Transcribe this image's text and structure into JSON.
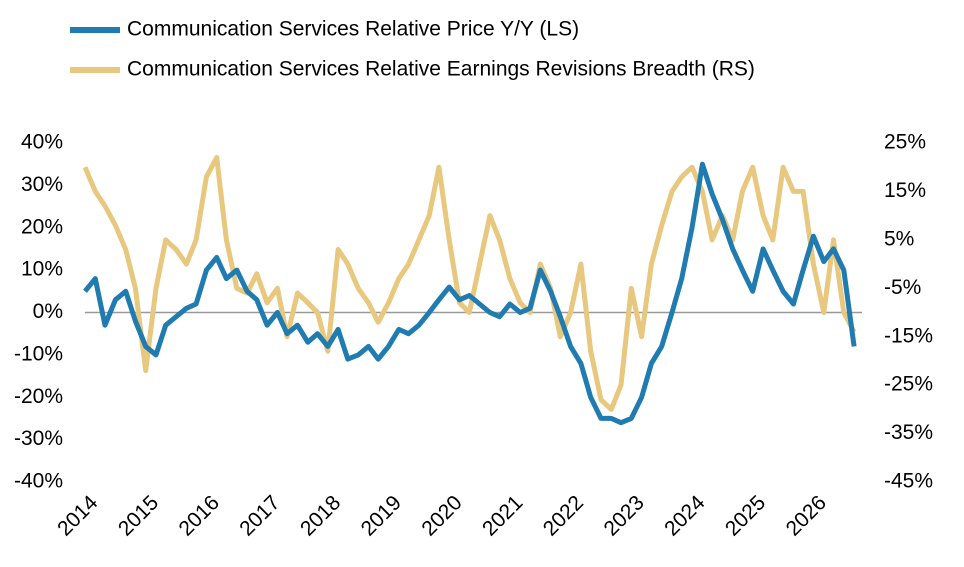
{
  "chart_data": {
    "type": "line",
    "x": [
      2014.0,
      2014.17,
      2014.33,
      2014.5,
      2014.67,
      2014.83,
      2015.0,
      2015.17,
      2015.33,
      2015.5,
      2015.67,
      2015.83,
      2016.0,
      2016.17,
      2016.33,
      2016.5,
      2016.67,
      2016.83,
      2017.0,
      2017.17,
      2017.33,
      2017.5,
      2017.67,
      2017.83,
      2018.0,
      2018.17,
      2018.33,
      2018.5,
      2018.67,
      2018.83,
      2019.0,
      2019.17,
      2019.33,
      2019.5,
      2019.67,
      2019.83,
      2020.0,
      2020.17,
      2020.33,
      2020.5,
      2020.67,
      2020.83,
      2021.0,
      2021.17,
      2021.33,
      2021.5,
      2021.67,
      2021.83,
      2022.0,
      2022.17,
      2022.33,
      2022.5,
      2022.67,
      2022.83,
      2023.0,
      2023.17,
      2023.33,
      2023.5,
      2023.67,
      2023.83,
      2024.0,
      2024.17,
      2024.33,
      2024.5,
      2024.67,
      2024.83,
      2025.0,
      2025.17,
      2025.33,
      2025.5,
      2025.67,
      2025.83,
      2026.0,
      2026.17,
      2026.33,
      2026.5,
      2026.67
    ],
    "series": [
      {
        "name": "Communication Services Relative Price Y/Y (LS)",
        "color": "#1f7bb0",
        "values": [
          5,
          8,
          -3,
          3,
          5,
          -2,
          -8,
          -10,
          -3,
          -1,
          1,
          2,
          10,
          13,
          8,
          10,
          5,
          3,
          -3,
          0,
          -5,
          -3,
          -7,
          -5,
          -8,
          -4,
          -11,
          -10,
          -8,
          -11,
          -8,
          -4,
          -5,
          -3,
          0,
          3,
          6,
          3,
          4,
          2,
          0,
          -1,
          2,
          0,
          1,
          10,
          5,
          -1,
          -8,
          -12,
          -20,
          -25,
          -25,
          -26,
          -25,
          -20,
          -12,
          -8,
          0,
          8,
          20,
          35,
          28,
          22,
          15,
          10,
          5,
          15,
          10,
          5,
          2,
          10,
          18,
          12,
          15,
          10,
          -8
        ]
      },
      {
        "name": "Communication Services Relative Earnings Revisions Breadth (RS)",
        "color": "#e8c77e",
        "axis": "y2",
        "values": [
          20,
          15,
          12,
          8,
          3,
          -5,
          -22,
          -5,
          5,
          3,
          0,
          5,
          18,
          22,
          5,
          -5,
          -6,
          -2,
          -8,
          -5,
          -15,
          -6,
          -8,
          -10,
          -18,
          3,
          0,
          -5,
          -8,
          -12,
          -8,
          -3,
          0,
          5,
          10,
          20,
          5,
          -8,
          -10,
          0,
          10,
          5,
          -3,
          -8,
          -10,
          0,
          -5,
          -15,
          -10,
          0,
          -18,
          -28,
          -30,
          -25,
          -5,
          -15,
          0,
          8,
          15,
          18,
          20,
          15,
          5,
          10,
          5,
          15,
          20,
          10,
          5,
          20,
          15,
          15,
          0,
          -10,
          5,
          -10,
          -14
        ]
      }
    ],
    "xlim": [
      2014,
      2026.8
    ],
    "xticks": [
      2014,
      2015,
      2016,
      2017,
      2018,
      2019,
      2020,
      2021,
      2022,
      2023,
      2024,
      2025,
      2026
    ],
    "ylim": [
      -40,
      40
    ],
    "yticks": [
      {
        "value": -40,
        "label": "-40%"
      },
      {
        "value": -30,
        "label": "-30%"
      },
      {
        "value": -20,
        "label": "-20%"
      },
      {
        "value": -10,
        "label": "-10%"
      },
      {
        "value": 0,
        "label": "0%"
      },
      {
        "value": 10,
        "label": "10%"
      },
      {
        "value": 20,
        "label": "20%"
      },
      {
        "value": 30,
        "label": "30%"
      },
      {
        "value": 40,
        "label": "40%"
      }
    ],
    "y2lim": [
      -45,
      25
    ],
    "y2ticks": [
      {
        "value": -45,
        "label": "-45%"
      },
      {
        "value": -35,
        "label": "-35%"
      },
      {
        "value": -25,
        "label": "-25%"
      },
      {
        "value": -15,
        "label": "-15%"
      },
      {
        "value": -5,
        "label": "-5%"
      },
      {
        "value": 5,
        "label": "5%"
      },
      {
        "value": 15,
        "label": "15%"
      },
      {
        "value": 25,
        "label": "25%"
      }
    ]
  }
}
